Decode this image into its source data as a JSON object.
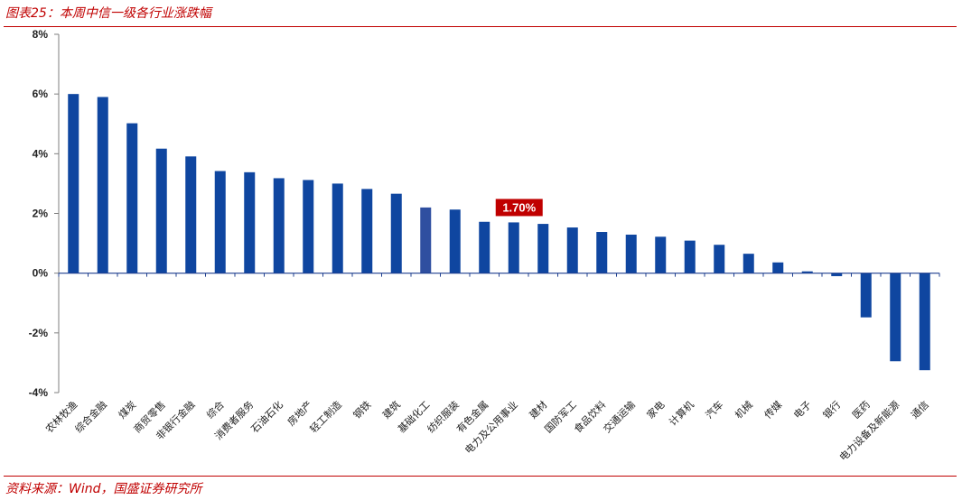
{
  "figure": {
    "title": "图表25：本周中信一级各行业涨跌幅",
    "source": "资料来源：Wind，国盛证券研究所"
  },
  "colors": {
    "accent": "#c00000",
    "bar": "#0f46a0",
    "highlight_bar": "#2f4fa0"
  },
  "chart_data": {
    "type": "bar",
    "title": "",
    "xlabel": "",
    "ylabel": "",
    "ylim": [
      -4,
      8
    ],
    "yticks": [
      -4,
      -2,
      0,
      2,
      4,
      6,
      8
    ],
    "ytick_labels": [
      "-4%",
      "-2%",
      "0%",
      "2%",
      "4%",
      "6%",
      "8%"
    ],
    "categories": [
      "农林牧渔",
      "综合金融",
      "煤炭",
      "商贸零售",
      "非银行金融",
      "综合",
      "消费者服务",
      "石油石化",
      "房地产",
      "轻工制造",
      "钢铁",
      "建筑",
      "基础化工",
      "纺织服装",
      "有色金属",
      "电力及公用事业",
      "建材",
      "国防军工",
      "食品饮料",
      "交通运输",
      "家电",
      "计算机",
      "汽车",
      "机械",
      "传媒",
      "电子",
      "银行",
      "医药",
      "电力设备及新能源",
      "通信"
    ],
    "values": [
      6.0,
      5.9,
      5.02,
      4.17,
      3.91,
      3.42,
      3.38,
      3.18,
      3.12,
      3.0,
      2.82,
      2.66,
      2.2,
      2.13,
      1.72,
      1.7,
      1.65,
      1.53,
      1.38,
      1.29,
      1.22,
      1.09,
      0.95,
      0.65,
      0.36,
      0.06,
      -0.1,
      -1.48,
      -2.95,
      -3.25
    ],
    "highlight_index": 12,
    "callout": {
      "category_index": 15,
      "label": "1.70%"
    },
    "grid": false,
    "legend": "none"
  }
}
